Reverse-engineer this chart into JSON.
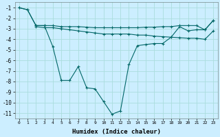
{
  "xlabel": "Humidex (Indice chaleur)",
  "bg_color": "#cceeff",
  "grid_color": "#aadddd",
  "line_color": "#006666",
  "ylim": [
    -11.5,
    -0.5
  ],
  "xlim": [
    -0.5,
    23.5
  ],
  "yticks": [
    -11,
    -10,
    -9,
    -8,
    -7,
    -6,
    -5,
    -4,
    -3,
    -2,
    -1
  ],
  "xticks": [
    0,
    1,
    2,
    3,
    4,
    5,
    6,
    7,
    8,
    9,
    10,
    11,
    12,
    13,
    14,
    15,
    16,
    17,
    18,
    19,
    20,
    21,
    22,
    23
  ],
  "series1_x": [
    0,
    1,
    2,
    3,
    4,
    5,
    6,
    7,
    8,
    9,
    10,
    11,
    12,
    13,
    14,
    15,
    16,
    17,
    18,
    19,
    20,
    21,
    22,
    23
  ],
  "series1_y": [
    -1.0,
    -1.2,
    -2.7,
    -2.7,
    -4.7,
    -7.9,
    -7.9,
    -6.6,
    -8.6,
    -8.7,
    -9.9,
    -11.1,
    -10.8,
    -6.4,
    -4.6,
    -4.5,
    -4.4,
    -4.4,
    -3.8,
    -2.8,
    -3.2,
    -3.1,
    -3.1,
    -2.2
  ],
  "series2_x": [
    0,
    1,
    2,
    3,
    4,
    5,
    6,
    7,
    8,
    9,
    10,
    11,
    12,
    13,
    14,
    15,
    16,
    17,
    18,
    19,
    20,
    21,
    22,
    23
  ],
  "series2_y": [
    -1.0,
    -1.2,
    -2.7,
    -2.7,
    -2.7,
    -2.8,
    -2.8,
    -2.8,
    -2.85,
    -2.9,
    -2.9,
    -2.9,
    -2.9,
    -2.9,
    -2.9,
    -2.85,
    -2.85,
    -2.8,
    -2.8,
    -2.7,
    -2.7,
    -2.7,
    -3.1,
    -2.2
  ],
  "series3_x": [
    2,
    3,
    4,
    5,
    6,
    7,
    8,
    9,
    10,
    11,
    12,
    13,
    14,
    15,
    16,
    17,
    18,
    19,
    20,
    21,
    22,
    23
  ],
  "series3_y": [
    -2.8,
    -2.9,
    -2.9,
    -3.0,
    -3.1,
    -3.2,
    -3.3,
    -3.4,
    -3.5,
    -3.5,
    -3.5,
    -3.5,
    -3.6,
    -3.6,
    -3.7,
    -3.75,
    -3.8,
    -3.85,
    -3.9,
    -3.9,
    -4.0,
    -3.2
  ]
}
